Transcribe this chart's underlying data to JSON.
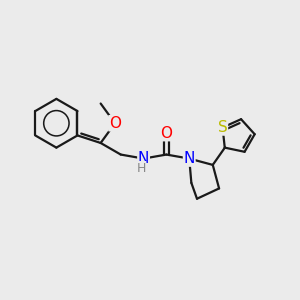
{
  "bg_color": "#ebebeb",
  "bond_color": "#1a1a1a",
  "bond_width": 1.6,
  "atom_colors": {
    "O": "#ff0000",
    "N": "#0000ff",
    "S": "#bbbb00",
    "C": "#1a1a1a",
    "H": "#888888"
  },
  "font_size": 10.0,
  "figsize": [
    3.0,
    3.0
  ],
  "dpi": 100,
  "xlim": [
    0,
    10
  ],
  "ylim": [
    0,
    10
  ]
}
